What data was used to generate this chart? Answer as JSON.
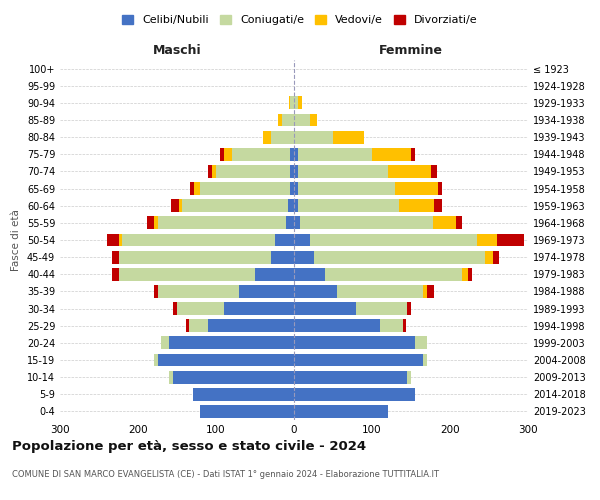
{
  "age_groups": [
    "0-4",
    "5-9",
    "10-14",
    "15-19",
    "20-24",
    "25-29",
    "30-34",
    "35-39",
    "40-44",
    "45-49",
    "50-54",
    "55-59",
    "60-64",
    "65-69",
    "70-74",
    "75-79",
    "80-84",
    "85-89",
    "90-94",
    "95-99",
    "100+"
  ],
  "birth_years": [
    "2019-2023",
    "2014-2018",
    "2009-2013",
    "2004-2008",
    "1999-2003",
    "1994-1998",
    "1989-1993",
    "1984-1988",
    "1979-1983",
    "1974-1978",
    "1969-1973",
    "1964-1968",
    "1959-1963",
    "1954-1958",
    "1949-1953",
    "1944-1948",
    "1939-1943",
    "1934-1938",
    "1929-1933",
    "1924-1928",
    "≤ 1923"
  ],
  "male": {
    "celibi": [
      120,
      130,
      155,
      175,
      160,
      110,
      90,
      70,
      50,
      30,
      25,
      10,
      8,
      5,
      5,
      5,
      0,
      0,
      0,
      0,
      0
    ],
    "coniugati": [
      0,
      0,
      5,
      5,
      10,
      25,
      60,
      105,
      175,
      195,
      195,
      165,
      135,
      115,
      95,
      75,
      30,
      15,
      5,
      0,
      0
    ],
    "vedovi": [
      0,
      0,
      0,
      0,
      0,
      0,
      0,
      0,
      0,
      0,
      5,
      5,
      5,
      8,
      5,
      10,
      10,
      5,
      2,
      0,
      0
    ],
    "divorziati": [
      0,
      0,
      0,
      0,
      0,
      3,
      5,
      5,
      8,
      8,
      15,
      8,
      10,
      5,
      5,
      5,
      0,
      0,
      0,
      0,
      0
    ]
  },
  "female": {
    "nubili": [
      120,
      155,
      145,
      165,
      155,
      110,
      80,
      55,
      40,
      25,
      20,
      8,
      5,
      5,
      5,
      5,
      0,
      0,
      0,
      0,
      0
    ],
    "coniugate": [
      0,
      0,
      5,
      5,
      15,
      30,
      65,
      110,
      175,
      220,
      215,
      170,
      130,
      125,
      115,
      95,
      50,
      20,
      5,
      0,
      0
    ],
    "vedove": [
      0,
      0,
      0,
      0,
      0,
      0,
      0,
      5,
      8,
      10,
      25,
      30,
      45,
      55,
      55,
      50,
      40,
      10,
      5,
      0,
      0
    ],
    "divorziate": [
      0,
      0,
      0,
      0,
      0,
      3,
      5,
      10,
      5,
      8,
      35,
      8,
      10,
      5,
      8,
      5,
      0,
      0,
      0,
      0,
      0
    ]
  },
  "color_celibi": "#4472c4",
  "color_coniugati": "#c5d9a0",
  "color_vedovi": "#ffc000",
  "color_divorziati": "#c00000",
  "title": "Popolazione per età, sesso e stato civile - 2024",
  "subtitle": "COMUNE DI SAN MARCO EVANGELISTA (CE) - Dati ISTAT 1° gennaio 2024 - Elaborazione TUTTITALIA.IT",
  "xlabel_maschi": "Maschi",
  "xlabel_femmine": "Femmine",
  "ylabel_left": "Fasce di età",
  "xlim": 300,
  "legend_labels": [
    "Celibi/Nubili",
    "Coniugati/e",
    "Vedovi/e",
    "Divorziati/e"
  ]
}
